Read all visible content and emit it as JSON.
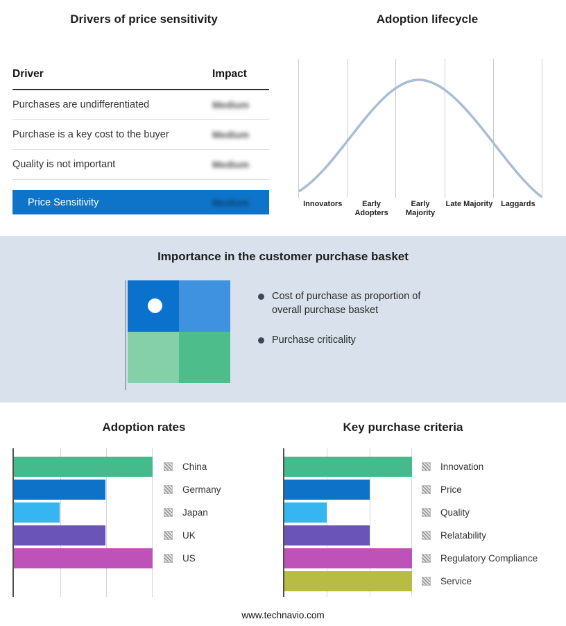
{
  "drivers_panel": {
    "title": "Drivers of price sensitivity",
    "header": {
      "driver": "Driver",
      "impact": "Impact"
    },
    "rows": [
      {
        "driver": "Purchases are undifferentiated",
        "impact": "Medium"
      },
      {
        "driver": "Purchase is a key cost to the buyer",
        "impact": "Medium"
      },
      {
        "driver": "Quality is not important",
        "impact": "Medium"
      }
    ],
    "summary": {
      "label": "Price Sensitivity",
      "impact": "Medium"
    },
    "summary_bg": "#0E74C9"
  },
  "lifecycle_panel": {
    "title": "Adoption lifecycle",
    "stages": [
      "Innovators",
      "Early Adopters",
      "Early Majority",
      "Late Majority",
      "Laggards"
    ],
    "curve_color": "#A9BDD6"
  },
  "basket_panel": {
    "title": "Importance in the customer purchase basket",
    "bullets": [
      "Cost of purchase as proportion of overall purchase basket",
      "Purchase criticality"
    ],
    "quadrant_colors": [
      "#0A71CC",
      "#3E92E0",
      "#85D0A8",
      "#4DBD8B"
    ],
    "marker_color": "#FFFFFF"
  },
  "chart_data": [
    {
      "type": "bar",
      "orientation": "horizontal",
      "title": "Adoption rates",
      "categories": [
        "China",
        "Germany",
        "Japan",
        "UK",
        "US"
      ],
      "values_pct": [
        100,
        66,
        33,
        66,
        100
      ],
      "colors": [
        "#45BB8D",
        "#0E72C8",
        "#36B6F0",
        "#6A54B8",
        "#BF52B8"
      ],
      "xlim": [
        0,
        100
      ],
      "grid": true,
      "legend_position": "right"
    },
    {
      "type": "bar",
      "orientation": "horizontal",
      "title": "Key purchase criteria",
      "categories": [
        "Innovation",
        "Price",
        "Quality",
        "Relatability",
        "Regulatory Compliance",
        "Service"
      ],
      "values_pct": [
        100,
        67,
        33,
        67,
        100,
        100
      ],
      "colors": [
        "#45BB8D",
        "#0E72C8",
        "#36B6F0",
        "#6A54B8",
        "#BF52B8",
        "#B8BC42"
      ],
      "xlim": [
        0,
        100
      ],
      "grid": true,
      "legend_position": "right"
    }
  ],
  "footer": {
    "text": "www.technavio.com"
  }
}
